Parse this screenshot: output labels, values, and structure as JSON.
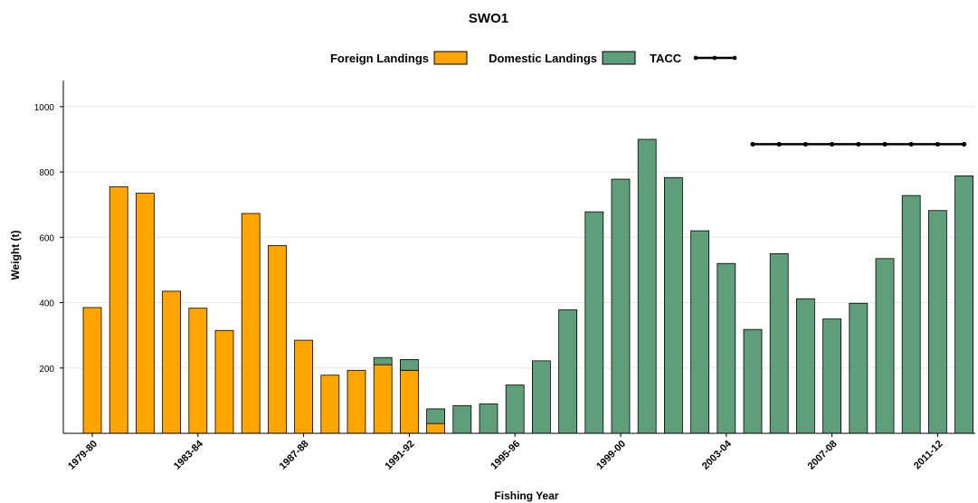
{
  "colors": {
    "foreign": "#FFA500",
    "domestic": "#5F9E7A",
    "tacc": "#000000",
    "grid": "#E6E6E6"
  },
  "chart_data": {
    "type": "bar",
    "stacked": true,
    "title": "SWO1",
    "xlabel": "Fishing Year",
    "ylabel": "Weight (t)",
    "ylim": [
      0,
      1080
    ],
    "yticks": [
      200,
      400,
      600,
      800,
      1000
    ],
    "grid": true,
    "legend_position": "top",
    "categories": [
      "1979-80",
      "1980-81",
      "1981-82",
      "1982-83",
      "1983-84",
      "1984-85",
      "1985-86",
      "1986-87",
      "1987-88",
      "1988-89",
      "1989-90",
      "1990-91",
      "1991-92",
      "1992-93",
      "1993-94",
      "1994-95",
      "1995-96",
      "1996-97",
      "1997-98",
      "1998-99",
      "1999-00",
      "2000-01",
      "2001-02",
      "2002-03",
      "2003-04",
      "2004-05",
      "2005-06",
      "2006-07",
      "2007-08",
      "2008-09",
      "2009-10",
      "2010-11",
      "2011-12",
      "2012-13"
    ],
    "xtick_labels": [
      "1979-80",
      "1983-84",
      "1987-88",
      "1991-92",
      "1995-96",
      "1999-00",
      "2003-04",
      "2007-08",
      "2011-12"
    ],
    "series": [
      {
        "name": "Foreign Landings",
        "type": "bar",
        "values": [
          385,
          755,
          735,
          435,
          383,
          315,
          673,
          575,
          285,
          178,
          193,
          210,
          193,
          30,
          0,
          0,
          0,
          0,
          0,
          0,
          0,
          0,
          0,
          0,
          0,
          0,
          0,
          0,
          0,
          0,
          0,
          0,
          0,
          0
        ]
      },
      {
        "name": "Domestic Landings",
        "type": "bar",
        "values": [
          0,
          0,
          0,
          0,
          0,
          0,
          0,
          0,
          0,
          0,
          0,
          22,
          33,
          45,
          85,
          90,
          148,
          222,
          378,
          678,
          778,
          900,
          783,
          620,
          520,
          318,
          550,
          412,
          350,
          398,
          535,
          728,
          682,
          788
        ]
      },
      {
        "name": "TACC",
        "type": "line",
        "values": [
          null,
          null,
          null,
          null,
          null,
          null,
          null,
          null,
          null,
          null,
          null,
          null,
          null,
          null,
          null,
          null,
          null,
          null,
          null,
          null,
          null,
          null,
          null,
          null,
          null,
          885,
          885,
          885,
          885,
          885,
          885,
          885,
          885,
          885
        ]
      }
    ]
  }
}
